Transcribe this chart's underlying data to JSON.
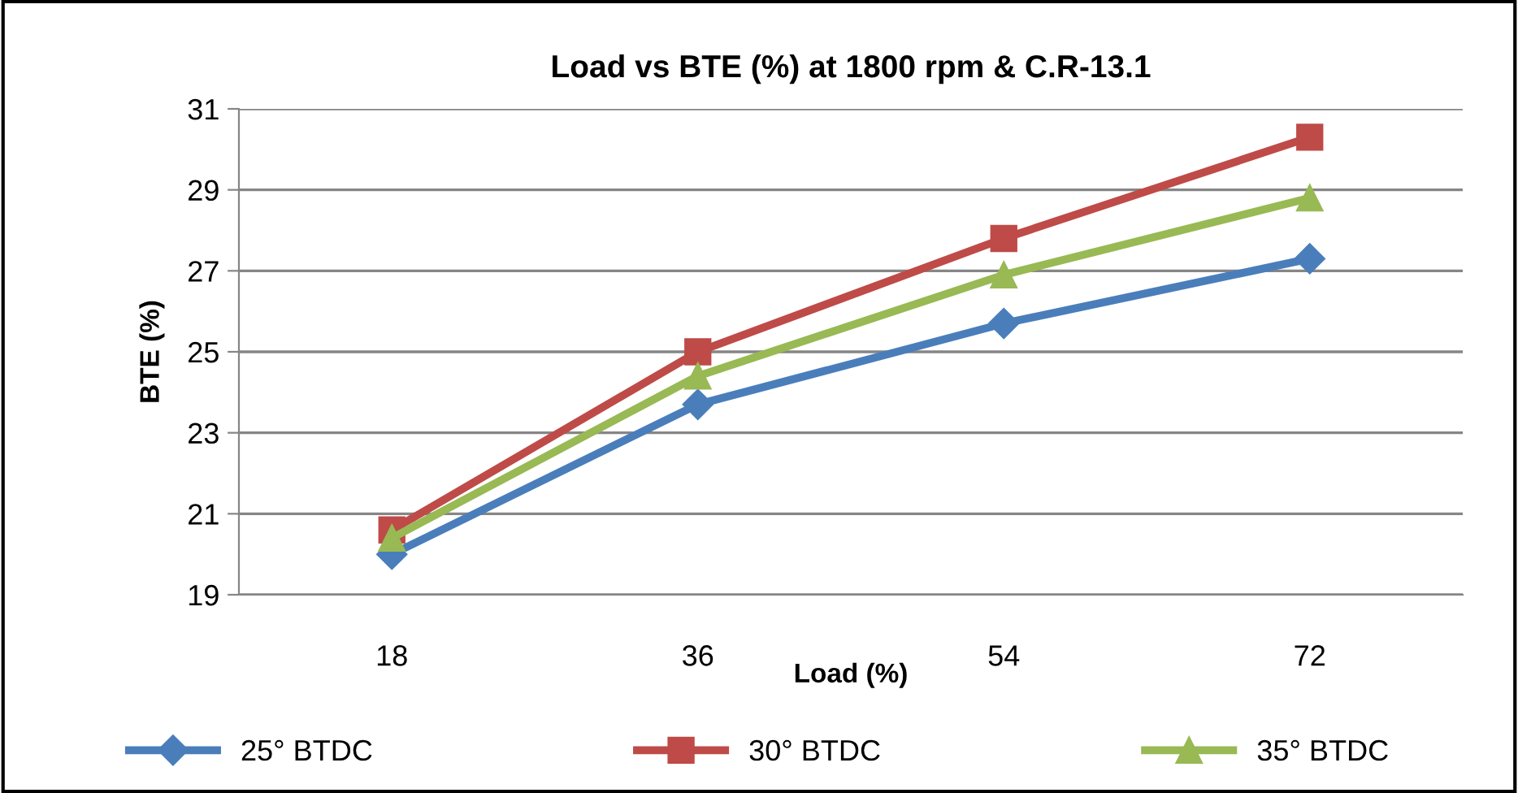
{
  "chart_data": {
    "type": "line",
    "title": "Load vs BTE (%) at 1800 rpm & C.R-13.1",
    "xlabel": "Load (%)",
    "ylabel": "BTE (%)",
    "categories": [
      "18",
      "36",
      "54",
      "72"
    ],
    "series": [
      {
        "name": "25° BTDC",
        "color": "#4a7ebb",
        "marker": "diamond",
        "values": [
          20.0,
          23.7,
          25.7,
          27.3
        ]
      },
      {
        "name": "30° BTDC",
        "color": "#be4b48",
        "marker": "square",
        "values": [
          20.6,
          25.0,
          27.8,
          30.3
        ]
      },
      {
        "name": "35° BTDC",
        "color": "#98b954",
        "marker": "triangle",
        "values": [
          20.4,
          24.4,
          26.9,
          28.8
        ]
      }
    ],
    "ylim": [
      19,
      31
    ],
    "yticks": [
      19,
      21,
      23,
      25,
      27,
      29,
      31
    ],
    "grid": "y",
    "legend": "bottom",
    "line_style": "solid"
  }
}
